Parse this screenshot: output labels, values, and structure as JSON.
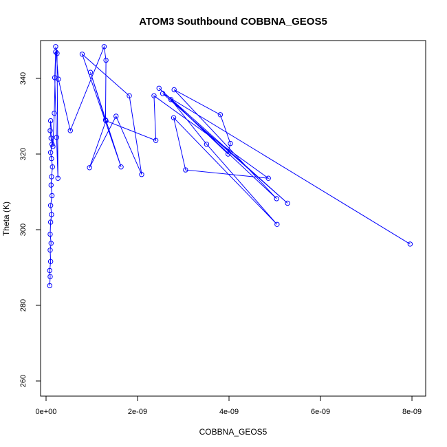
{
  "chart_data": {
    "type": "line",
    "title": "ATOM3 Southbound COBBNA_GEOS5",
    "xlabel": "COBBNA_GEOS5",
    "ylabel": "Theta (K)",
    "xlim": [
      -1.2e-10,
      8.3e-09
    ],
    "ylim": [
      256,
      350
    ],
    "x_ticks": [
      0,
      2e-09,
      4e-09,
      6e-09,
      8e-09
    ],
    "x_tick_labels": [
      "0e+00",
      "2e-09",
      "4e-09",
      "6e-09",
      "8e-09"
    ],
    "y_ticks": [
      260,
      280,
      300,
      320,
      340
    ],
    "y_tick_labels": [
      "260",
      "280",
      "300",
      "320",
      "340"
    ],
    "grid": false,
    "series": [
      {
        "color": "#0000ff",
        "marker": "open-circle",
        "points": [
          {
            "x": 8e-11,
            "y": 285.2
          },
          {
            "x": 9e-11,
            "y": 287.6
          },
          {
            "x": 8e-11,
            "y": 289.2
          },
          {
            "x": 1e-10,
            "y": 291.6
          },
          {
            "x": 9e-11,
            "y": 294.6
          },
          {
            "x": 1.1e-10,
            "y": 296.4
          },
          {
            "x": 9e-11,
            "y": 298.8
          },
          {
            "x": 1e-10,
            "y": 302.0
          },
          {
            "x": 1.2e-10,
            "y": 304.0
          },
          {
            "x": 1e-10,
            "y": 306.4
          },
          {
            "x": 1.3e-10,
            "y": 309.0
          },
          {
            "x": 1.1e-10,
            "y": 311.8
          },
          {
            "x": 1.2e-10,
            "y": 314.0
          },
          {
            "x": 1.4e-10,
            "y": 316.6
          },
          {
            "x": 1.2e-10,
            "y": 318.8
          },
          {
            "x": 1e-10,
            "y": 320.4
          },
          {
            "x": 1.3e-10,
            "y": 322.6
          },
          {
            "x": 1.1e-10,
            "y": 324.2
          },
          {
            "x": 9e-11,
            "y": 326.2
          },
          {
            "x": 1e-10,
            "y": 328.8
          },
          {
            "x": 1.5e-10,
            "y": 322.0
          },
          {
            "x": 1.8e-10,
            "y": 330.8
          },
          {
            "x": 2.1e-10,
            "y": 347.0
          },
          {
            "x": 1.9e-10,
            "y": 340.2
          },
          {
            "x": 2.3e-10,
            "y": 324.4
          },
          {
            "x": 2.6e-10,
            "y": 313.6
          },
          {
            "x": 2.4e-10,
            "y": 346.6
          },
          {
            "x": 2.1e-10,
            "y": 348.4
          },
          {
            "x": 2.7e-10,
            "y": 339.8
          },
          {
            "x": 5.3e-10,
            "y": 326.2
          },
          {
            "x": 1.27e-09,
            "y": 348.4
          },
          {
            "x": 1.31e-09,
            "y": 344.8
          },
          {
            "x": 1.3e-09,
            "y": 329.0
          },
          {
            "x": 9.7e-10,
            "y": 341.6
          },
          {
            "x": 1.64e-09,
            "y": 316.6
          },
          {
            "x": 7.9e-10,
            "y": 346.4
          },
          {
            "x": 1.82e-09,
            "y": 335.4
          },
          {
            "x": 2.09e-09,
            "y": 314.6
          },
          {
            "x": 1.53e-09,
            "y": 330.0
          },
          {
            "x": 9.5e-10,
            "y": 316.4
          },
          {
            "x": 1.31e-09,
            "y": 328.8
          },
          {
            "x": 2.4e-09,
            "y": 323.6
          },
          {
            "x": 2.36e-09,
            "y": 335.4
          },
          {
            "x": 4.86e-09,
            "y": 313.6
          },
          {
            "x": 3.05e-09,
            "y": 315.8
          },
          {
            "x": 2.79e-09,
            "y": 329.6
          },
          {
            "x": 5.05e-09,
            "y": 301.4
          },
          {
            "x": 3.51e-09,
            "y": 322.6
          },
          {
            "x": 2.73e-09,
            "y": 334.4
          },
          {
            "x": 3.98e-09,
            "y": 320.0
          },
          {
            "x": 4.03e-09,
            "y": 322.8
          },
          {
            "x": 3.81e-09,
            "y": 330.4
          },
          {
            "x": 2.8e-09,
            "y": 337.0
          },
          {
            "x": 5.04e-09,
            "y": 308.2
          },
          {
            "x": 2.47e-09,
            "y": 337.4
          },
          {
            "x": 5.28e-09,
            "y": 307.0
          },
          {
            "x": 2.55e-09,
            "y": 336.0
          },
          {
            "x": 7.96e-09,
            "y": 296.2
          }
        ]
      }
    ]
  }
}
